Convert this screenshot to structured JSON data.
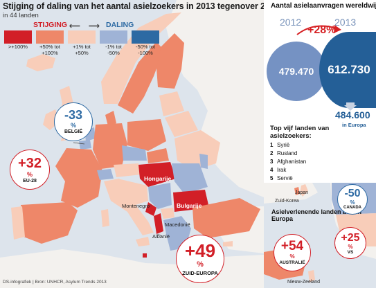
{
  "map": {
    "title": "Stijging of daling van het aantal asielzoekers in 2013 tegenover 2012 in %",
    "subtitle": "in 44 landen",
    "source": "DS-infografiek | Bron: UNHCR, Asylum Trends 2013"
  },
  "legend": {
    "rise_label": "STIJGING",
    "fall_label": "DALING",
    "arrow_left": "⟵",
    "arrow_right": "⟶",
    "items": [
      {
        "label": ">+100%",
        "color": "#d21f27"
      },
      {
        "label": "+50% tot\n+100%",
        "color": "#ee8769"
      },
      {
        "label": "+1% tot\n+50%",
        "color": "#f8cdb9"
      },
      {
        "label": "-1% tot\n-50%",
        "color": "#9fb3d6"
      },
      {
        "label": "-50% tot\n-100%",
        "color": "#2d6aa3"
      }
    ]
  },
  "country_labels": {
    "hongarije": "Hongarije",
    "bulgarije": "Bulgarije",
    "montenegro": "Montenegro",
    "macedonie": "Macedonië",
    "albanie": "Albanië"
  },
  "callouts": {
    "belgie": {
      "num": "-33",
      "pct": "%",
      "name": "BELGIË"
    },
    "eu28": {
      "num": "+32",
      "pct": "%",
      "name": "EU-28"
    },
    "zuid": {
      "num": "+49",
      "pct": "%",
      "name": "ZUID-EUROPA"
    }
  },
  "world": {
    "title": "Aantal asielaanvragen wereldwijd",
    "year_2012": "2012",
    "year_2013": "2013",
    "growth": "+28%",
    "value_2012": "479.470",
    "value_2013": "612.730",
    "europe_value": "484.600",
    "europe_label": "in Europa"
  },
  "top5": {
    "title": "Top vijf landen van asielzoekers:",
    "items": [
      {
        "rank": "1",
        "country": "Syrië"
      },
      {
        "rank": "2",
        "country": "Rusland"
      },
      {
        "rank": "3",
        "country": "Afghanistan"
      },
      {
        "rank": "4",
        "country": "Irak"
      },
      {
        "rank": "5",
        "country": "Servië"
      }
    ]
  },
  "outside_europe": {
    "title": "Asielverlenende landen buiten Europa",
    "japan": "Japan",
    "zuid_korea": "Zuid-Korea",
    "nieuw_zeeland": "Nieuw-Zeeland",
    "canada": {
      "num": "-50",
      "pct": "%",
      "name": "CANADA"
    },
    "australie": {
      "num": "+54",
      "pct": "%",
      "name": "AUSTRALIË"
    },
    "vs": {
      "num": "+25",
      "pct": "%",
      "name": "VS"
    }
  },
  "colors": {
    "rise_strong": "#d21f27",
    "rise_mid": "#ee8769",
    "rise_low": "#f8cdb9",
    "fall_low": "#9fb3d6",
    "fall_strong": "#2d6aa3",
    "sea": "#dde4ec",
    "no_data": "#f3f1ee",
    "circle_2012": "#7592c3",
    "circle_2013": "#245f97",
    "growth_red": "#d62023"
  }
}
